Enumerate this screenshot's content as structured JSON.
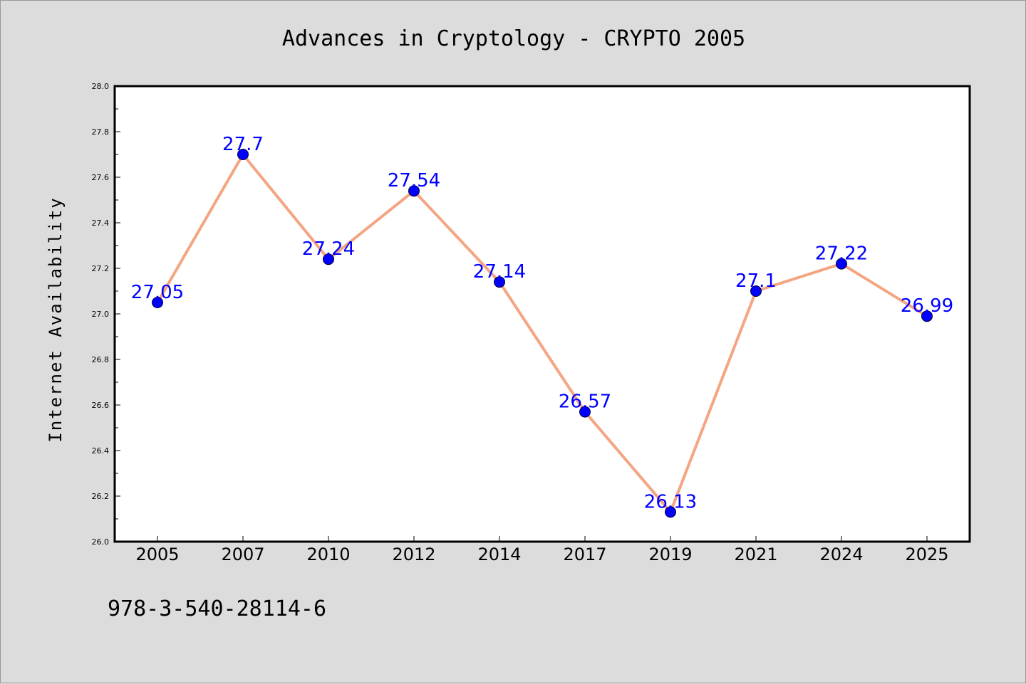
{
  "chart_data": {
    "type": "line",
    "title": "Advances in Cryptology - CRYPTO 2005",
    "xlabel": "",
    "ylabel": "Internet Availability",
    "categories": [
      "2005",
      "2007",
      "2010",
      "2012",
      "2014",
      "2017",
      "2019",
      "2021",
      "2024",
      "2025"
    ],
    "series": [
      {
        "values": [
          27.05,
          27.7,
          27.24,
          27.54,
          27.14,
          26.57,
          26.13,
          27.1,
          27.22,
          26.99
        ],
        "data_labels": [
          "27.05",
          "27.7",
          "27.24",
          "27.54",
          "27.14",
          "26.57",
          "26.13",
          "27.1",
          "27.22",
          "26.99"
        ],
        "line_color": "#f4a582",
        "marker_color": "#0000ff",
        "label_color": "#0000ff"
      }
    ],
    "ylim": [
      26.0,
      28.0
    ],
    "yticks": [
      "26.0",
      "26.2",
      "26.4",
      "26.6",
      "26.8",
      "27.0",
      "27.2",
      "27.4",
      "27.6",
      "27.8",
      "28.0"
    ],
    "grid": false,
    "legend": "none"
  },
  "footer": {
    "isbn": "978-3-540-28114-6"
  },
  "colors": {
    "background": "#dcdcdc",
    "plot_background": "#ffffff",
    "axis": "#000000"
  }
}
